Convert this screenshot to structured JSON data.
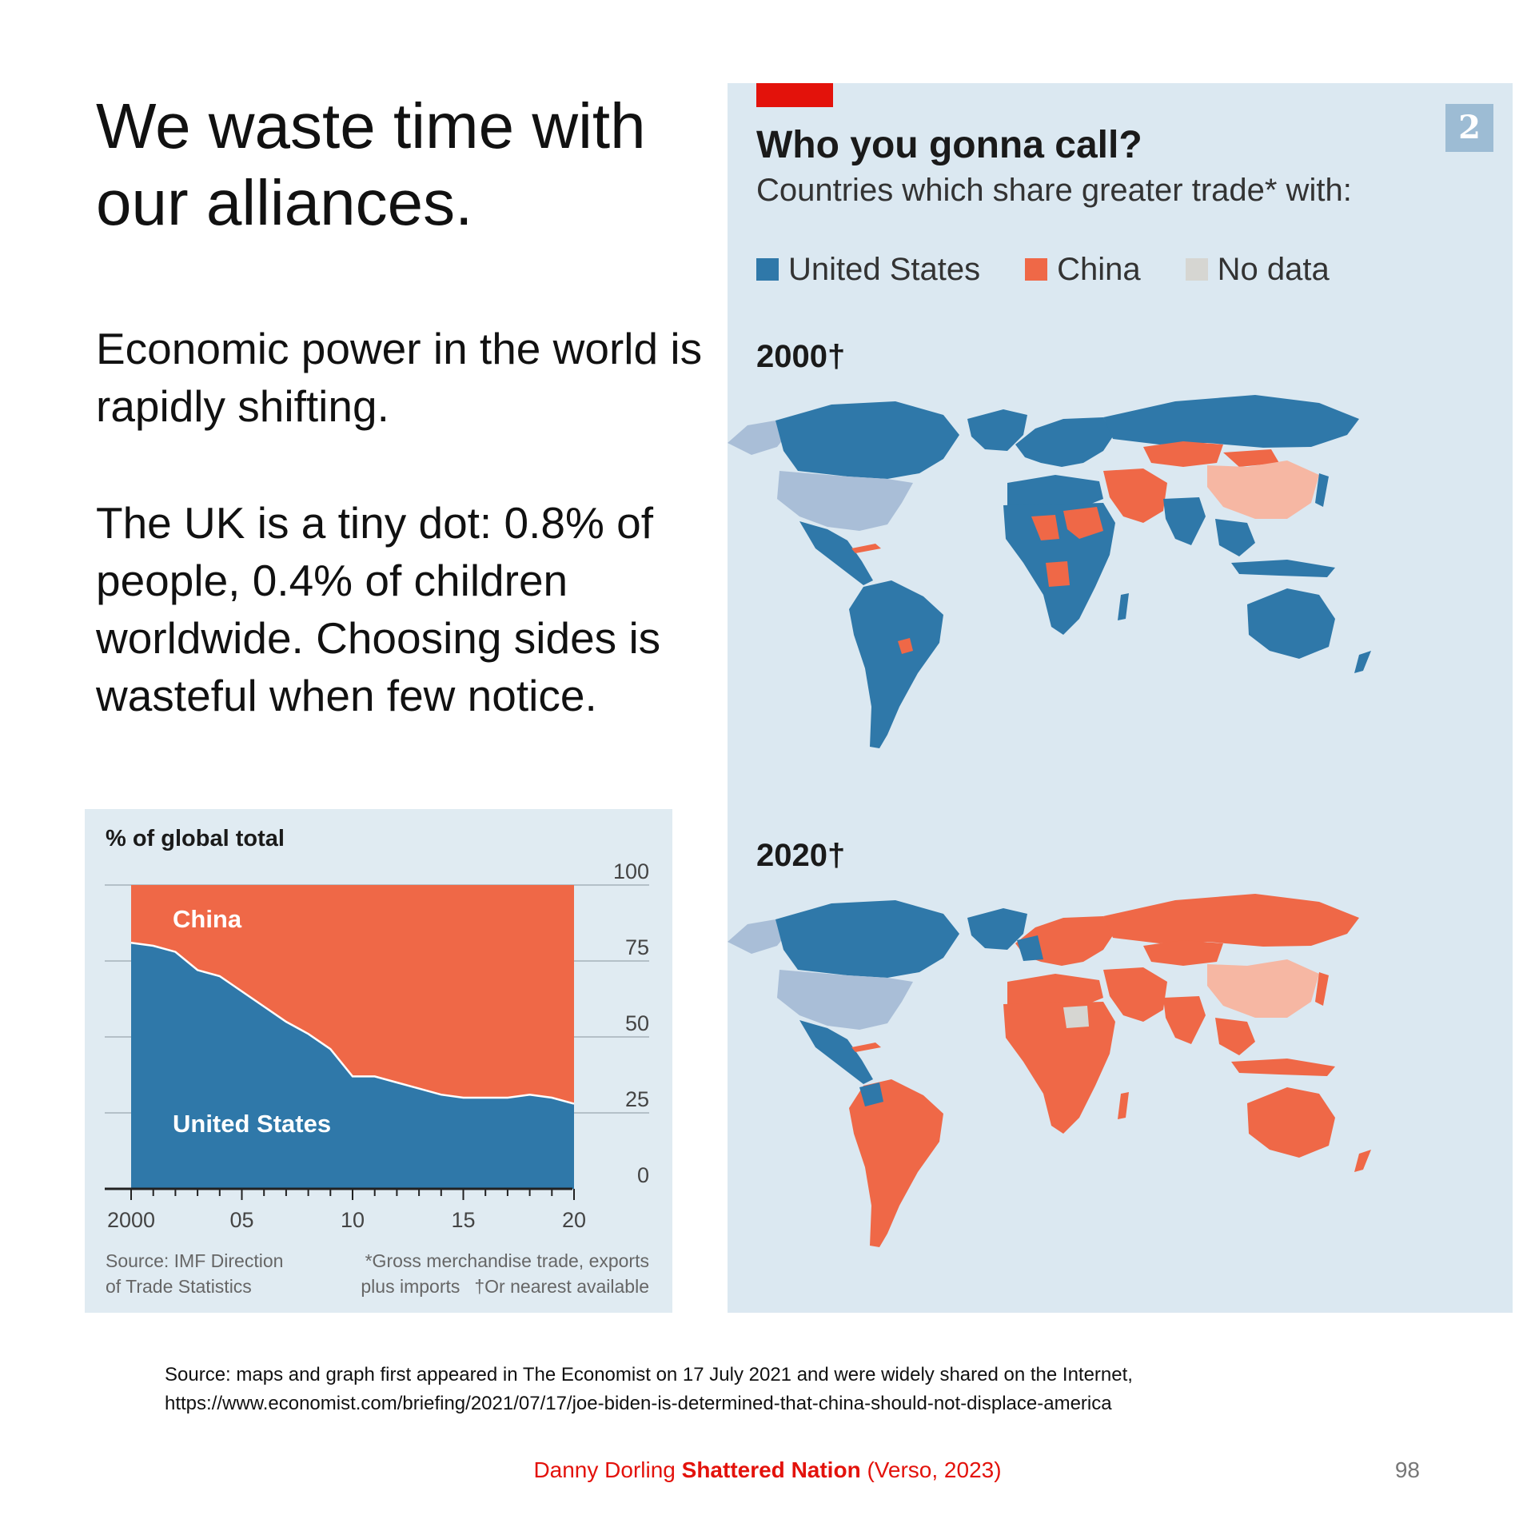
{
  "slide": {
    "title": "We waste time with our alliances.",
    "paragraph1": "Economic power in the world is rapidly shifting.",
    "paragraph2": "The UK is a tiny dot: 0.8% of people, 0.4% of children worldwide. Choosing sides is wasteful when few notice.",
    "source_line1": "Source: maps and graph first appeared in The Economist on 17 July 2021 and were widely shared on the Internet,",
    "source_line2": "https://www.economist.com/briefing/2021/07/17/joe-biden-is-determined-that-china-should-not-displace-america",
    "footer_author": "Danny Dorling",
    "footer_book": "Shattered Nation",
    "footer_publisher": "(Verso, 2023)",
    "page_number": "98"
  },
  "colors": {
    "us": "#2f78a9",
    "china": "#ef6847",
    "us_light": "#a9bed7",
    "china_light": "#f6b7a3",
    "no_data": "#d6d6d2",
    "economist_red": "#e3120b"
  },
  "map_panel": {
    "number": "2",
    "title": "Who you gonna call?",
    "subtitle": "Countries which share greater trade* with:",
    "legend": [
      {
        "label": "United States",
        "color": "#2f78a9"
      },
      {
        "label": "China",
        "color": "#ef6847"
      },
      {
        "label": "No data",
        "color": "#d6d6d2"
      }
    ],
    "map_2000": {
      "label": "2000†",
      "predominant": "United States"
    },
    "map_2020": {
      "label": "2020†",
      "predominant": "China"
    }
  },
  "chart_data": {
    "type": "area",
    "title": "% of global total",
    "x": [
      2000,
      2001,
      2002,
      2003,
      2004,
      2005,
      2006,
      2007,
      2008,
      2009,
      2010,
      2011,
      2012,
      2013,
      2014,
      2015,
      2016,
      2017,
      2018,
      2019,
      2020
    ],
    "series": [
      {
        "name": "United States",
        "values": [
          81,
          80,
          78,
          72,
          70,
          65,
          60,
          55,
          51,
          46,
          37,
          37,
          35,
          33,
          31,
          30,
          30,
          30,
          31,
          30,
          28
        ]
      },
      {
        "name": "China",
        "values": [
          19,
          20,
          22,
          28,
          30,
          35,
          40,
          45,
          49,
          54,
          63,
          63,
          65,
          67,
          69,
          70,
          70,
          70,
          69,
          70,
          72
        ]
      }
    ],
    "stacked": true,
    "xlim": [
      2000,
      2020
    ],
    "ylim": [
      0,
      100
    ],
    "x_ticks": [
      "2000",
      "05",
      "10",
      "15",
      "20"
    ],
    "y_ticks": [
      "0",
      "25",
      "50",
      "75",
      "100"
    ],
    "y_axis_side": "right",
    "source_note": [
      "Source: IMF Direction",
      "of Trade Statistics"
    ],
    "footnote": [
      "*Gross merchandise trade, exports",
      "plus imports",
      "†Or nearest available"
    ]
  }
}
